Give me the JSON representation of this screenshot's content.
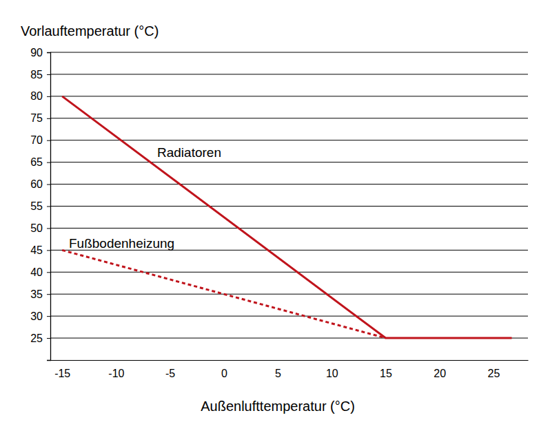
{
  "chart_data": {
    "type": "line",
    "y_label": "Vorlauftemperatur (°C)",
    "x_label": "Außenlufttemperatur (°C)",
    "series": [
      {
        "name": "Radiatoren",
        "color": "#c0141c",
        "line_style": "solid",
        "x": [
          -15,
          15,
          26.7
        ],
        "values": [
          80,
          25,
          25
        ]
      },
      {
        "name": "Fußbodenheizung",
        "color": "#c0141c",
        "line_style": "dashed",
        "x": [
          -15,
          15
        ],
        "values": [
          45,
          25
        ]
      }
    ],
    "xlim": [
      -16.1,
      28.2
    ],
    "xticks": [
      -15,
      -10,
      -5,
      0,
      5,
      10,
      15,
      20,
      25
    ],
    "ylim": [
      20,
      90
    ],
    "yticks": [
      25,
      30,
      35,
      40,
      45,
      50,
      55,
      60,
      65,
      70,
      75,
      80,
      85,
      90
    ],
    "grid": true,
    "legend": "none"
  }
}
